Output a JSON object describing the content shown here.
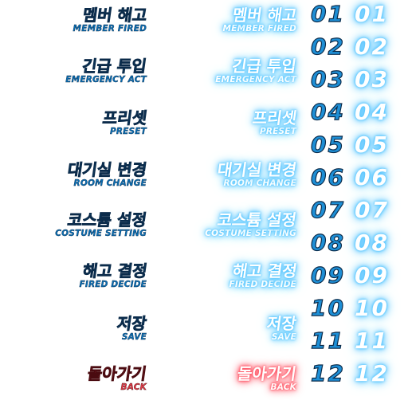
{
  "menu": {
    "items": [
      {
        "ko": "멤버 해고",
        "en": "MEMBER FIRED"
      },
      {
        "ko": "긴급 투입",
        "en": "EMERGENCY ACT"
      },
      {
        "ko": "프리셋",
        "en": "PRESET"
      },
      {
        "ko": "대기실 변경",
        "en": "ROOM CHANGE"
      },
      {
        "ko": "코스튬 설정",
        "en": "COSTUME SETTING"
      },
      {
        "ko": "해고 결정",
        "en": "FIRED DECIDE"
      },
      {
        "ko": "저장",
        "en": "SAVE"
      },
      {
        "ko": "돌아가기",
        "en": "BACK"
      }
    ]
  },
  "numbers": [
    "01",
    "02",
    "03",
    "04",
    "05",
    "06",
    "07",
    "08",
    "09",
    "10",
    "11",
    "12"
  ],
  "colors": {
    "plain_fill": "#0a6fb5",
    "outline": "#0b2b4a",
    "glow_blue": "#4fc3ff",
    "back_red": "#e23b47",
    "glow_red": "#ff4a5a"
  }
}
